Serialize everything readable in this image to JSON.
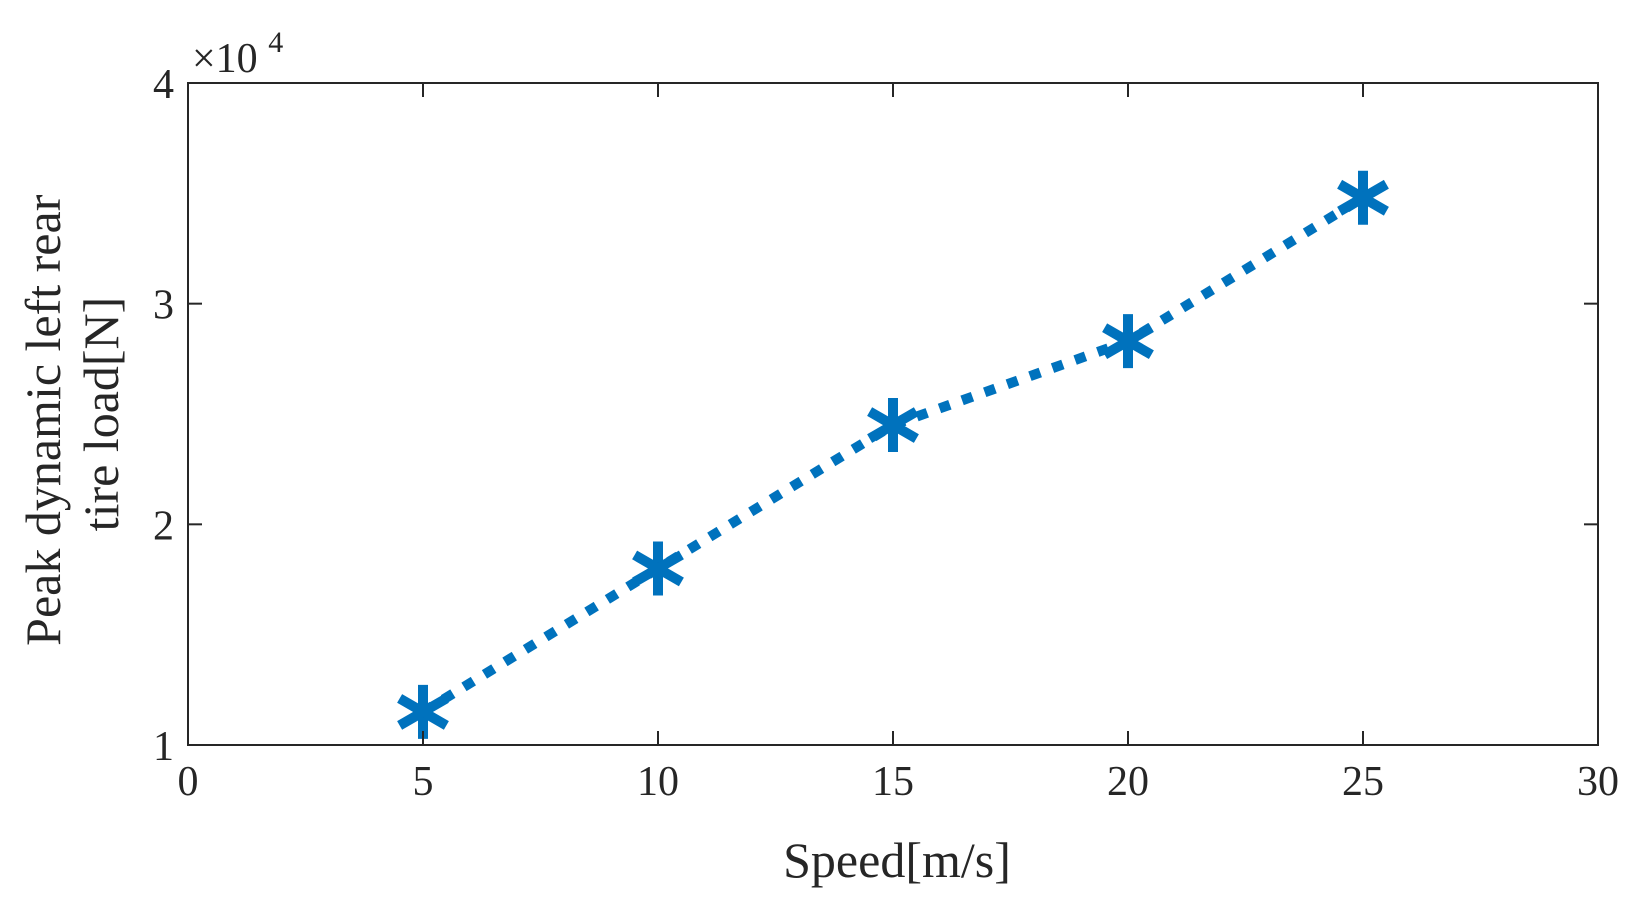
{
  "chart_data": {
    "type": "line",
    "title": "",
    "xlabel": "Speed[m/s]",
    "ylabel_lines": [
      "Peak dynamic left rear",
      "tire load[N]"
    ],
    "y_scale_text": "×10",
    "y_scale_exponent": "4",
    "xlim": [
      0,
      30
    ],
    "ylim": [
      1,
      4
    ],
    "xticks": [
      0,
      5,
      10,
      15,
      20,
      25,
      30
    ],
    "yticks": [
      1,
      2,
      3,
      4
    ],
    "xtick_labels": [
      "0",
      "5",
      "10",
      "15",
      "20",
      "25",
      "30"
    ],
    "ytick_labels": [
      "1",
      "2",
      "3",
      "4"
    ],
    "grid": false,
    "series": [
      {
        "name": "Peak dynamic left rear tire load",
        "x": [
          5,
          10,
          15,
          20,
          25
        ],
        "y": [
          1.15,
          1.8,
          2.45,
          2.83,
          3.48
        ],
        "color": "#0072BD",
        "line_style": "dotted",
        "marker": "asterisk"
      }
    ]
  }
}
